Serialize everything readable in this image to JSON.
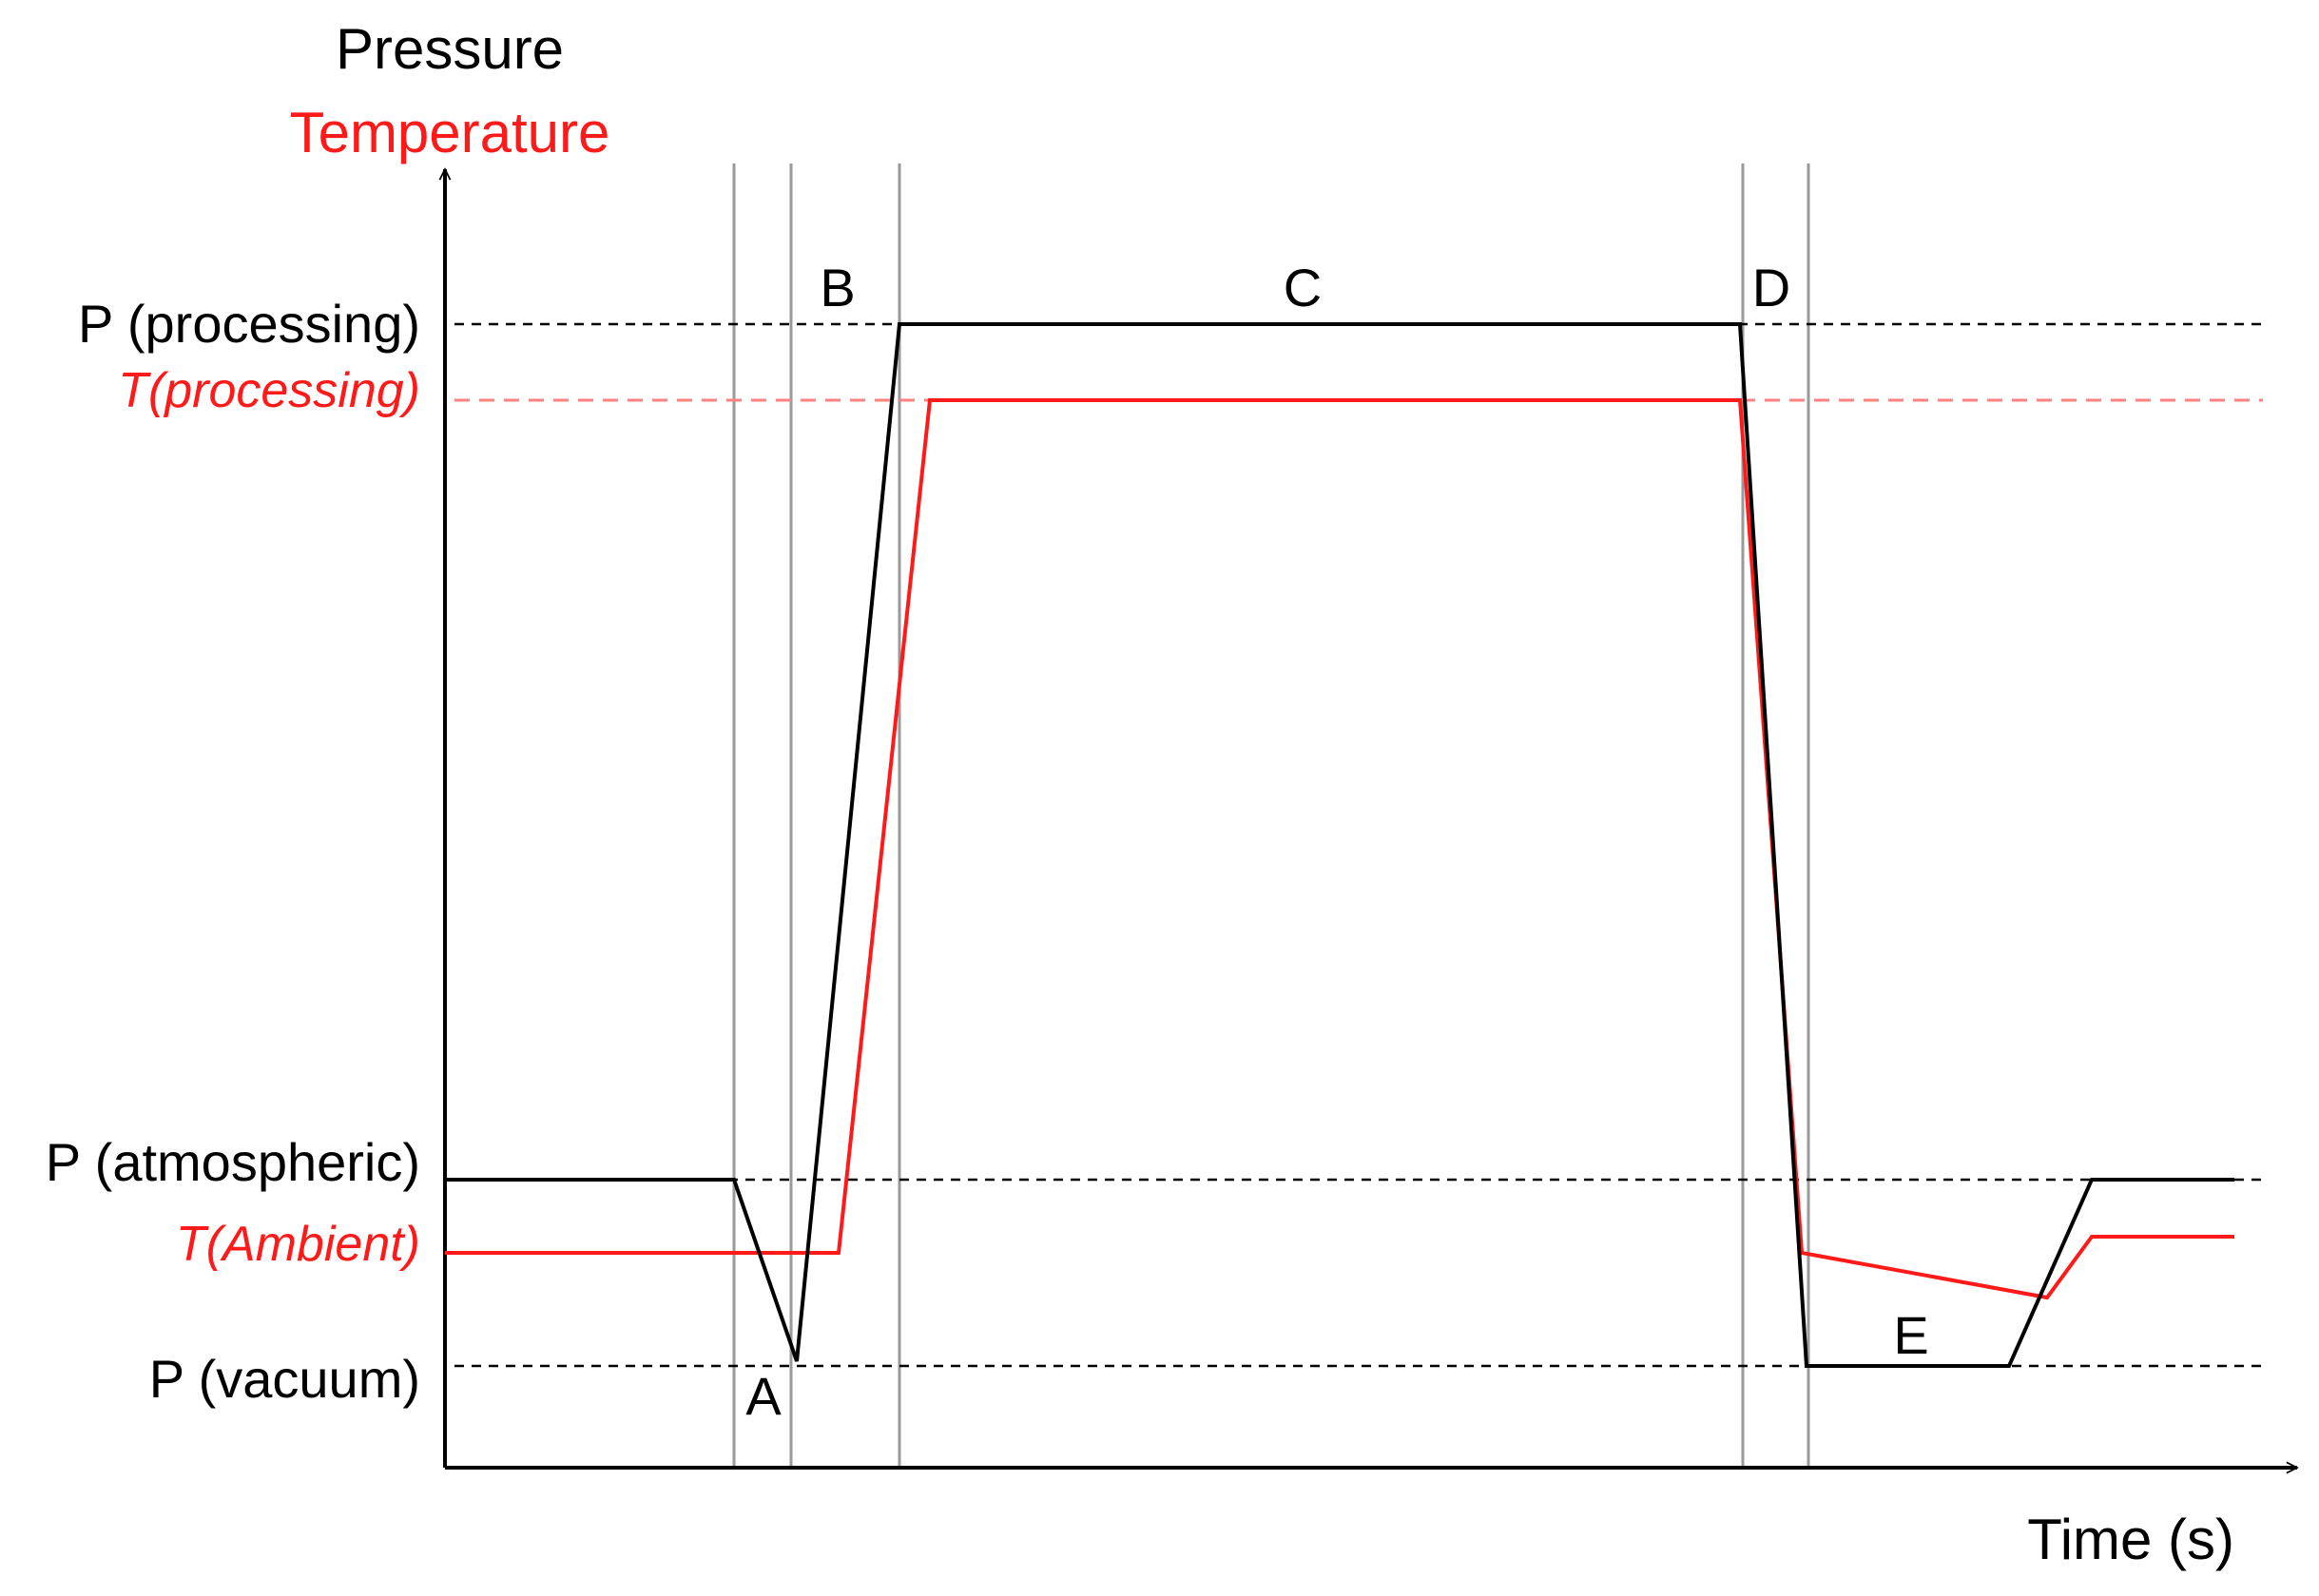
{
  "colors": {
    "pressure": "#000000",
    "temperature": "#ff1a1a",
    "temperature_dashed": "#ff8080",
    "divider": "#9a9a9a",
    "reference_dashed": "#000000"
  },
  "axes": {
    "y_title_pressure": "Pressure",
    "y_title_temperature": "Temperature",
    "x_title": "Time (s)"
  },
  "levels": {
    "p_processing": "P (processing)",
    "t_processing": "T(processing)",
    "p_atmospheric": "P (atmospheric)",
    "t_ambient": "T(Ambient)",
    "p_vacuum": "P (vacuum)"
  },
  "phases": {
    "a": "A",
    "b": "B",
    "c": "C",
    "d": "D",
    "e": "E"
  },
  "legend": {
    "pressure_series": "Pressure",
    "temperature_series": "Temperature"
  }
}
